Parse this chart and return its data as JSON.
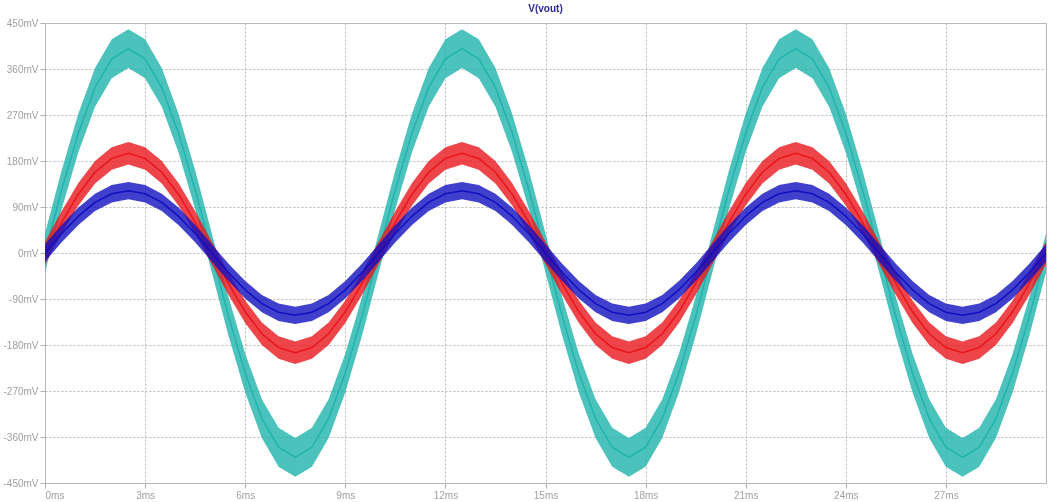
{
  "chart_data": {
    "type": "line",
    "title": "V(vout)",
    "x": [
      0,
      0.5,
      1,
      1.5,
      2,
      2.5,
      3,
      3.5,
      4,
      4.5,
      5,
      5.5,
      6,
      6.5,
      7,
      7.5,
      8,
      8.5,
      9,
      9.5,
      10,
      10.5,
      11,
      11.5,
      12,
      12.5,
      13,
      13.5,
      14,
      14.5,
      15,
      15.5,
      16,
      16.5,
      17,
      17.5,
      18,
      18.5,
      19,
      19.5,
      20,
      20.5,
      21,
      21.5,
      22,
      22.5,
      23,
      23.5,
      24,
      24.5,
      25,
      25.5,
      26,
      26.5,
      27,
      27.5,
      28,
      28.5,
      29,
      29.5,
      30
    ],
    "series": [
      {
        "color": "#1fb3ad",
        "values": [
          0,
          124,
          235,
          324,
          380,
          400,
          380,
          324,
          235,
          124,
          0,
          -124,
          -235,
          -324,
          -380,
          -400,
          -380,
          -324,
          -235,
          -124,
          0,
          124,
          235,
          324,
          380,
          400,
          380,
          324,
          235,
          124,
          0,
          -124,
          -235,
          -324,
          -380,
          -400,
          -380,
          -324,
          -235,
          -124,
          0,
          124,
          235,
          324,
          380,
          400,
          380,
          324,
          235,
          124,
          0,
          -124,
          -235,
          -324,
          -380,
          -400,
          -380,
          -324,
          -235,
          -124,
          0
        ],
        "upper": [
          38,
          162,
          273,
          362,
          418,
          438,
          418,
          362,
          273,
          162,
          38,
          -86,
          -197,
          -286,
          -342,
          -362,
          -342,
          -286,
          -197,
          -86,
          38,
          162,
          273,
          362,
          418,
          438,
          418,
          362,
          273,
          162,
          38,
          -86,
          -197,
          -286,
          -342,
          -362,
          -342,
          -286,
          -197,
          -86,
          38,
          162,
          273,
          362,
          418,
          438,
          418,
          362,
          273,
          162,
          38,
          -86,
          -197,
          -286,
          -342,
          -362,
          -342,
          -286,
          -197,
          -86,
          38
        ],
        "lower": [
          -38,
          86,
          197,
          286,
          342,
          362,
          342,
          286,
          197,
          86,
          -38,
          -162,
          -273,
          -362,
          -418,
          -438,
          -418,
          -362,
          -273,
          -162,
          -38,
          86,
          197,
          286,
          342,
          362,
          342,
          286,
          197,
          86,
          -38,
          -162,
          -273,
          -362,
          -418,
          -438,
          -418,
          -362,
          -273,
          -162,
          -38,
          86,
          197,
          286,
          342,
          362,
          342,
          286,
          197,
          86,
          -38,
          -162,
          -273,
          -362,
          -418,
          -438,
          -418,
          -362,
          -273,
          -162,
          -38
        ]
      },
      {
        "color": "#e8161c",
        "values": [
          0,
          60,
          115,
          158,
          185,
          195,
          185,
          158,
          115,
          60,
          0,
          -60,
          -115,
          -158,
          -185,
          -195,
          -185,
          -158,
          -115,
          -60,
          0,
          60,
          115,
          158,
          185,
          195,
          185,
          158,
          115,
          60,
          0,
          -60,
          -115,
          -158,
          -185,
          -195,
          -185,
          -158,
          -115,
          -60,
          0,
          60,
          115,
          158,
          185,
          195,
          185,
          158,
          115,
          60,
          0,
          -60,
          -115,
          -158,
          -185,
          -195,
          -185,
          -158,
          -115,
          -60,
          0
        ],
        "upper": [
          22,
          82,
          137,
          180,
          207,
          217,
          207,
          180,
          137,
          82,
          22,
          -38,
          -93,
          -136,
          -163,
          -173,
          -163,
          -136,
          -93,
          -38,
          22,
          82,
          137,
          180,
          207,
          217,
          207,
          180,
          137,
          82,
          22,
          -38,
          -93,
          -136,
          -163,
          -173,
          -163,
          -136,
          -93,
          -38,
          22,
          82,
          137,
          180,
          207,
          217,
          207,
          180,
          137,
          82,
          22,
          -38,
          -93,
          -136,
          -163,
          -173,
          -163,
          -136,
          -93,
          -38,
          22
        ],
        "lower": [
          -22,
          38,
          93,
          136,
          163,
          173,
          163,
          136,
          93,
          38,
          -22,
          -82,
          -137,
          -180,
          -207,
          -217,
          -207,
          -180,
          -137,
          -82,
          -22,
          38,
          93,
          136,
          163,
          173,
          163,
          136,
          93,
          38,
          -22,
          -82,
          -137,
          -180,
          -207,
          -217,
          -207,
          -180,
          -137,
          -82,
          -22,
          38,
          93,
          136,
          163,
          173,
          163,
          136,
          93,
          38,
          -22,
          -82,
          -137,
          -180,
          -207,
          -217,
          -207,
          -180,
          -137,
          -82,
          -22
        ]
      },
      {
        "color": "#1010c0",
        "values": [
          0,
          38,
          72,
          99,
          116,
          122,
          116,
          99,
          72,
          38,
          0,
          -38,
          -72,
          -99,
          -116,
          -122,
          -116,
          -99,
          -72,
          -38,
          0,
          38,
          72,
          99,
          116,
          122,
          116,
          99,
          72,
          38,
          0,
          -38,
          -72,
          -99,
          -116,
          -122,
          -116,
          -99,
          -72,
          -38,
          0,
          38,
          72,
          99,
          116,
          122,
          116,
          99,
          72,
          38,
          0,
          -38,
          -72,
          -99,
          -116,
          -122,
          -116,
          -99,
          -72,
          -38,
          0
        ],
        "upper": [
          17,
          55,
          89,
          116,
          133,
          139,
          133,
          116,
          89,
          55,
          17,
          -21,
          -55,
          -82,
          -99,
          -105,
          -99,
          -82,
          -55,
          -21,
          17,
          55,
          89,
          116,
          133,
          139,
          133,
          116,
          89,
          55,
          17,
          -21,
          -55,
          -82,
          -99,
          -105,
          -99,
          -82,
          -55,
          -21,
          17,
          55,
          89,
          116,
          133,
          139,
          133,
          116,
          89,
          55,
          17,
          -21,
          -55,
          -82,
          -99,
          -105,
          -99,
          -82,
          -55,
          -21,
          17
        ],
        "lower": [
          -17,
          21,
          55,
          82,
          99,
          105,
          99,
          82,
          55,
          21,
          -17,
          -55,
          -89,
          -116,
          -133,
          -139,
          -133,
          -116,
          -89,
          -55,
          -17,
          21,
          55,
          82,
          99,
          105,
          99,
          82,
          55,
          21,
          -17,
          -55,
          -89,
          -116,
          -133,
          -139,
          -133,
          -116,
          -89,
          -55,
          -17,
          21,
          55,
          82,
          99,
          105,
          99,
          82,
          55,
          21,
          -17,
          -55,
          -89,
          -116,
          -133,
          -139,
          -133,
          -116,
          -89,
          -55,
          -17
        ]
      }
    ],
    "xlim": [
      0,
      30
    ],
    "xticks": [
      {
        "value": 0,
        "label": "0ms"
      },
      {
        "value": 3,
        "label": "3ms"
      },
      {
        "value": 6,
        "label": "6ms"
      },
      {
        "value": 9,
        "label": "9ms"
      },
      {
        "value": 12,
        "label": "12ms"
      },
      {
        "value": 15,
        "label": "15ms"
      },
      {
        "value": 18,
        "label": "18ms"
      },
      {
        "value": 21,
        "label": "21ms"
      },
      {
        "value": 24,
        "label": "24ms"
      },
      {
        "value": 27,
        "label": "27ms"
      }
    ],
    "ylim": [
      -450,
      450
    ],
    "yticks": [
      {
        "value": -450,
        "label": "-450mV"
      },
      {
        "value": -360,
        "label": "-360mV"
      },
      {
        "value": -270,
        "label": "-270mV"
      },
      {
        "value": -180,
        "label": "-180mV"
      },
      {
        "value": -90,
        "label": "-90mV"
      },
      {
        "value": 0,
        "label": "0mV"
      },
      {
        "value": 90,
        "label": "90mV"
      },
      {
        "value": 180,
        "label": "180mV"
      },
      {
        "value": 270,
        "label": "270mV"
      },
      {
        "value": 360,
        "label": "360mV"
      },
      {
        "value": 450,
        "label": "450mV"
      }
    ],
    "grid": true,
    "line_style": "solid"
  }
}
